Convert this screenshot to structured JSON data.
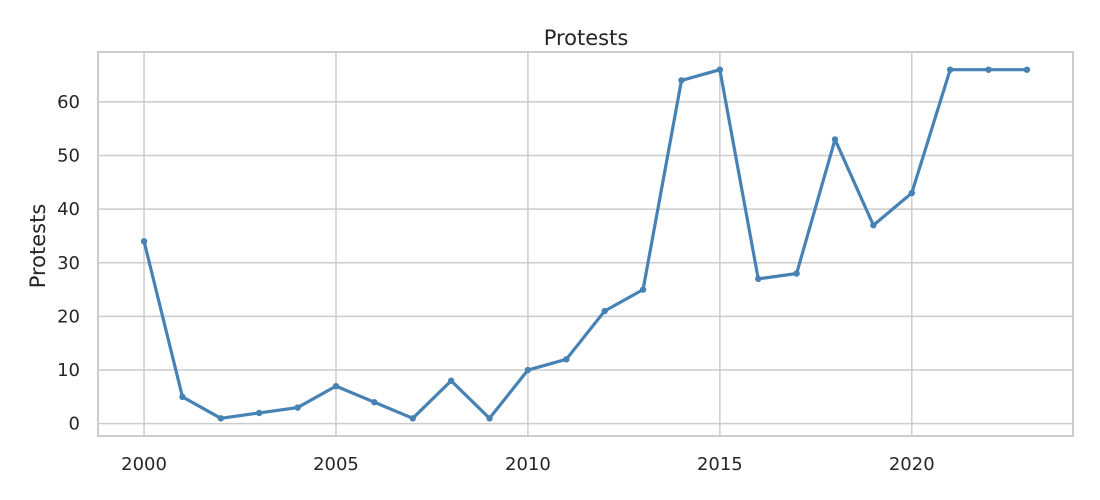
{
  "chart_data": {
    "type": "line",
    "title": "Protests",
    "xlabel": "",
    "ylabel": "Protests",
    "xlim": [
      1998.8,
      2024.2
    ],
    "ylim": [
      -2.3,
      69.3
    ],
    "x_ticks": [
      2000,
      2005,
      2010,
      2015,
      2020
    ],
    "y_ticks": [
      0,
      10,
      20,
      30,
      40,
      50,
      60
    ],
    "grid": true,
    "legend": "none",
    "series": [
      {
        "color": "#4682b4",
        "marker": "circle",
        "x": [
          2000,
          2001,
          2002,
          2003,
          2004,
          2005,
          2006,
          2007,
          2008,
          2009,
          2010,
          2011,
          2012,
          2013,
          2014,
          2015,
          2016,
          2017,
          2018,
          2019,
          2020,
          2021,
          2022,
          2023
        ],
        "y": [
          34,
          5,
          1,
          2,
          3,
          7,
          4,
          1,
          8,
          1,
          10,
          12,
          21,
          25,
          64,
          66,
          27,
          28,
          53,
          37,
          43,
          66,
          66,
          66
        ]
      }
    ]
  }
}
